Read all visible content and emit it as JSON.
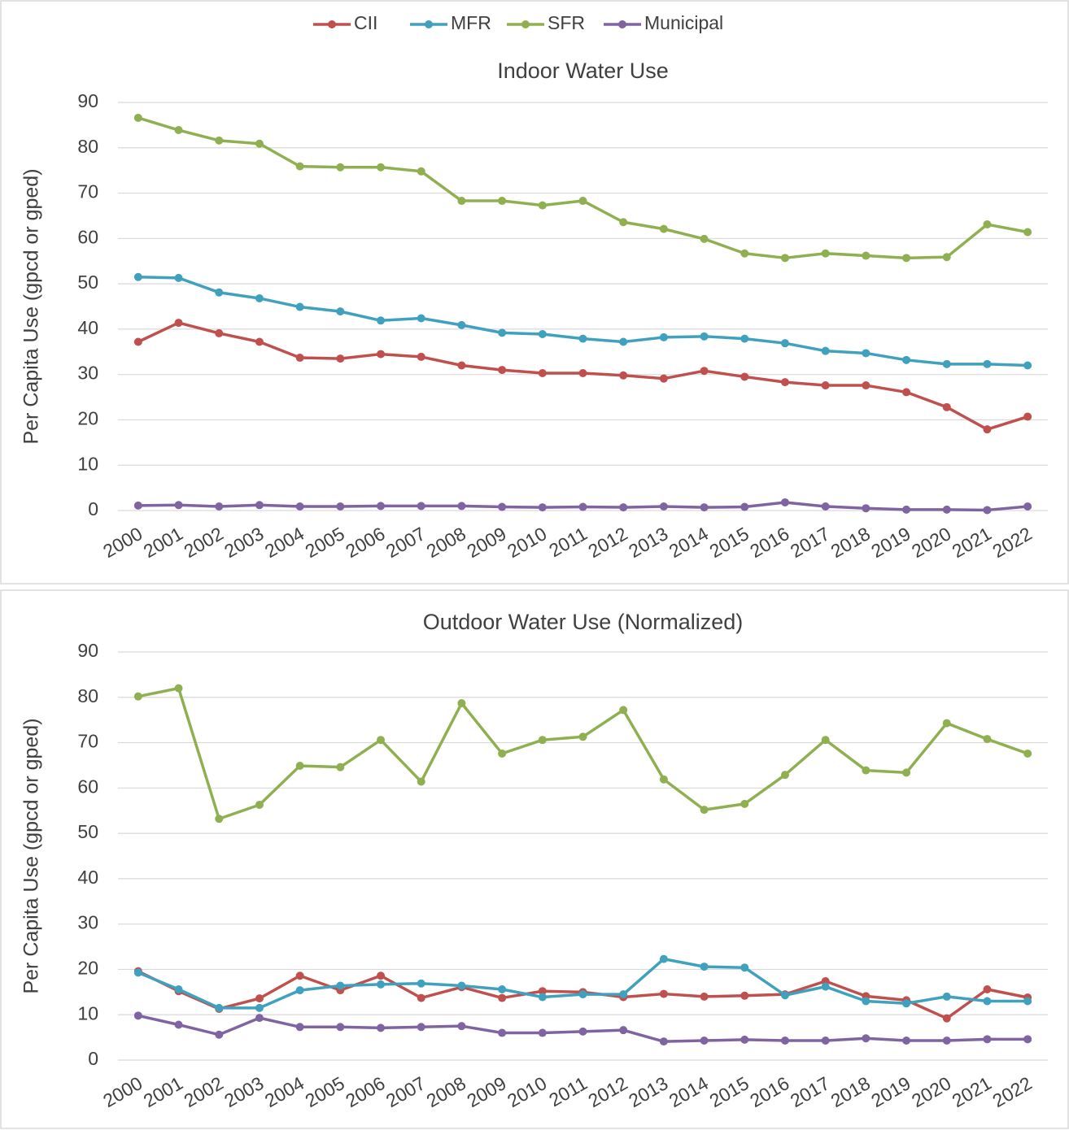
{
  "chart_data": [
    {
      "type": "line",
      "title": "Indoor Water Use",
      "y_label": "Per Capita Use (gpcd or gped)",
      "legend": "top",
      "grid": true,
      "categories": [
        "2000",
        "2001",
        "2002",
        "2003",
        "2004",
        "2005",
        "2006",
        "2007",
        "2008",
        "2009",
        "2010",
        "2011",
        "2012",
        "2013",
        "2014",
        "2015",
        "2016",
        "2017",
        "2018",
        "2019",
        "2020",
        "2021",
        "2022"
      ],
      "ylim": [
        0,
        90
      ],
      "yticks": [
        0,
        10,
        20,
        30,
        40,
        50,
        60,
        70,
        80,
        90
      ],
      "series": [
        {
          "name": "CII",
          "color": "#c0504d",
          "values": [
            37.2,
            41.4,
            39.1,
            37.2,
            33.7,
            33.5,
            34.5,
            33.9,
            32.0,
            31.0,
            30.3,
            30.3,
            29.8,
            29.1,
            30.8,
            29.5,
            28.3,
            27.6,
            27.6,
            26.1,
            22.8,
            17.9,
            20.7
          ]
        },
        {
          "name": "MFR",
          "color": "#3fa1bd",
          "values": [
            51.5,
            51.3,
            48.1,
            46.8,
            44.9,
            43.9,
            41.9,
            42.4,
            40.9,
            39.2,
            38.9,
            37.9,
            37.2,
            38.2,
            38.4,
            37.9,
            36.9,
            35.2,
            34.7,
            33.2,
            32.3,
            32.3,
            32.0
          ]
        },
        {
          "name": "SFR",
          "color": "#8fb050",
          "values": [
            86.6,
            83.9,
            81.6,
            80.9,
            75.9,
            75.7,
            75.7,
            74.8,
            68.3,
            68.3,
            67.3,
            68.3,
            63.6,
            62.1,
            59.9,
            56.7,
            55.7,
            56.7,
            56.2,
            55.7,
            55.9,
            63.1,
            61.4
          ]
        },
        {
          "name": "Municipal",
          "color": "#8064a2",
          "values": [
            1.1,
            1.2,
            0.9,
            1.2,
            0.9,
            0.9,
            1.0,
            1.0,
            1.0,
            0.8,
            0.7,
            0.8,
            0.7,
            0.9,
            0.7,
            0.8,
            1.8,
            0.9,
            0.5,
            0.2,
            0.2,
            0.1,
            0.9
          ]
        }
      ]
    },
    {
      "type": "line",
      "title": "Outdoor Water Use (Normalized)",
      "y_label": "Per Capita Use (gpcd or gped)",
      "grid": true,
      "categories": [
        "2000",
        "2001",
        "2002",
        "2003",
        "2004",
        "2005",
        "2006",
        "2007",
        "2008",
        "2009",
        "2010",
        "2011",
        "2012",
        "2013",
        "2014",
        "2015",
        "2016",
        "2017",
        "2018",
        "2019",
        "2020",
        "2021",
        "2022"
      ],
      "ylim": [
        0,
        90
      ],
      "yticks": [
        0,
        10,
        20,
        30,
        40,
        50,
        60,
        70,
        80,
        90
      ],
      "series": [
        {
          "color": "#c0504d",
          "values": [
            19.6,
            15.2,
            11.3,
            13.6,
            18.6,
            15.4,
            18.6,
            13.7,
            16.1,
            13.7,
            15.2,
            15.0,
            13.9,
            14.6,
            14.0,
            14.2,
            14.5,
            17.4,
            14.1,
            13.2,
            9.2,
            15.6,
            13.8
          ]
        },
        {
          "color": "#3fa1bd",
          "values": [
            19.3,
            15.6,
            11.5,
            11.5,
            15.4,
            16.4,
            16.7,
            16.9,
            16.4,
            15.6,
            13.9,
            14.5,
            14.5,
            22.3,
            20.6,
            20.4,
            14.3,
            16.2,
            13.0,
            12.5,
            14.0,
            13.0,
            13.0
          ]
        },
        {
          "color": "#8fb050",
          "values": [
            80.2,
            82.0,
            53.2,
            56.3,
            64.9,
            64.6,
            70.6,
            61.4,
            78.7,
            67.6,
            70.6,
            71.3,
            77.2,
            61.9,
            55.2,
            56.5,
            62.9,
            70.6,
            63.9,
            63.4,
            74.3,
            70.8,
            67.6
          ]
        },
        {
          "color": "#8064a2",
          "values": [
            9.8,
            7.8,
            5.6,
            9.3,
            7.3,
            7.3,
            7.1,
            7.3,
            7.5,
            6.0,
            6.0,
            6.3,
            6.6,
            4.1,
            4.3,
            4.5,
            4.3,
            4.3,
            4.8,
            4.3,
            4.3,
            4.6,
            4.6
          ]
        }
      ]
    }
  ]
}
